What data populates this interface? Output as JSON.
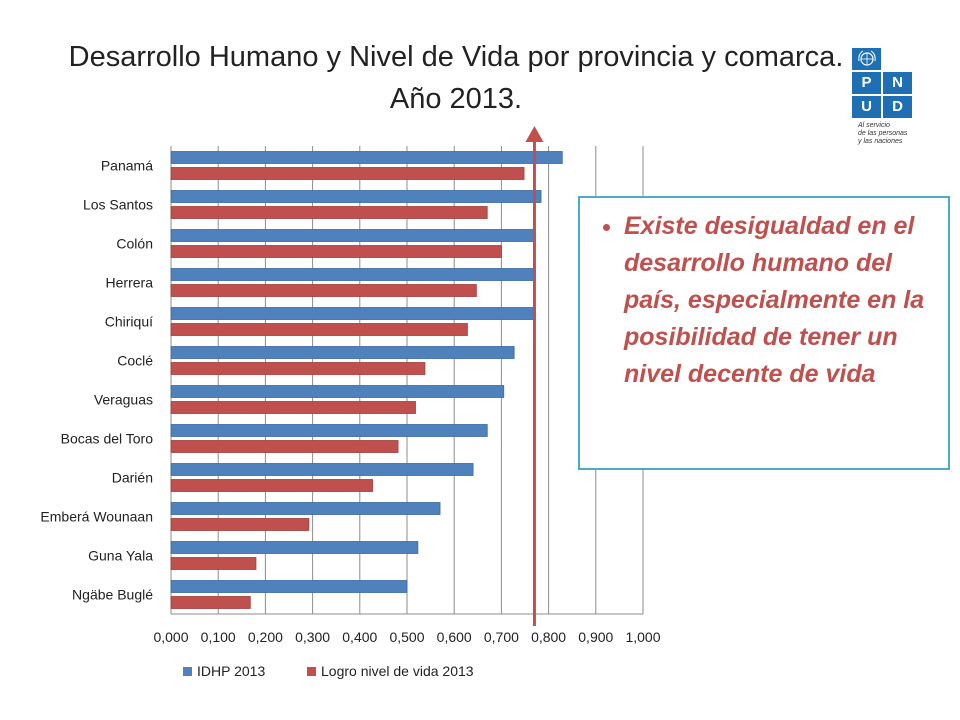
{
  "title": {
    "line1": "Desarrollo Humano y Nivel de Vida por provincia y comarca.",
    "line2": "Año 2013."
  },
  "logo": {
    "letters": [
      "P",
      "N",
      "U",
      "D"
    ],
    "caption": [
      "Al servicio",
      "de las personas",
      "y las naciones"
    ],
    "emblem_icon": "un-emblem-icon",
    "color": "#1f6fb5"
  },
  "note": {
    "bullet": "Existe desigualdad en el desarrollo humano del país, especialmente en la posibilidad de tener un nivel decente de vida",
    "text_color": "#c0504d",
    "border_color": "#4bacc6"
  },
  "chart_data": {
    "type": "bar",
    "orientation": "horizontal",
    "categories": [
      "Panamá",
      "Los Santos",
      "Colón",
      "Herrera",
      "Chiriquí",
      "Coclé",
      "Veraguas",
      "Bocas del Toro",
      "Darién",
      "Emberá Wounaan",
      "Guna Yala",
      "Ngäbe Buglé"
    ],
    "series": [
      {
        "name": "IDHP 2013",
        "color": "#4f81bd",
        "values": [
          0.829,
          0.784,
          0.772,
          0.772,
          0.772,
          0.727,
          0.705,
          0.67,
          0.64,
          0.57,
          0.523,
          0.5
        ]
      },
      {
        "name": "Logro nivel de vida 2013",
        "color": "#c0504d",
        "values": [
          0.748,
          0.67,
          0.7,
          0.647,
          0.628,
          0.538,
          0.518,
          0.481,
          0.427,
          0.292,
          0.18,
          0.168
        ]
      }
    ],
    "x_ticks": [
      "0,000",
      "0,100",
      "0,200",
      "0,300",
      "0,400",
      "0,500",
      "0,600",
      "0,700",
      "0,800",
      "0,900",
      "1,000"
    ],
    "xlim": [
      0,
      1
    ],
    "grid": true,
    "legend": "bottom",
    "reference_arrow": {
      "value": 0.77,
      "color": "#c0504d",
      "direction": "up"
    }
  }
}
